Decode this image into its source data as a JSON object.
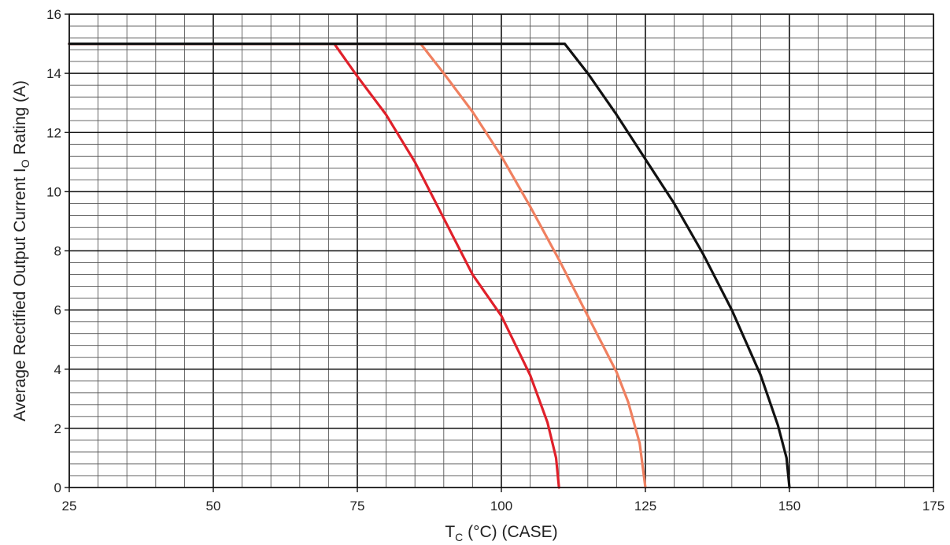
{
  "chart_data": {
    "type": "line",
    "xlabel": {
      "main": "T",
      "sub": "C",
      "rest": " (°C) (CASE)"
    },
    "ylabel": {
      "main": "Average Rectified Output Current I",
      "sub": "O",
      "rest": " Rating (A)"
    },
    "xlim": [
      25,
      175
    ],
    "ylim": [
      0,
      16
    ],
    "x_ticks": [
      "25",
      "50",
      "75",
      "100",
      "125",
      "150",
      "175"
    ],
    "y_ticks": [
      "0",
      "2",
      "4",
      "6",
      "8",
      "10",
      "12",
      "14",
      "16"
    ],
    "grid": true,
    "series": [
      {
        "color": "#e0202a",
        "points": [
          [
            25,
            15
          ],
          [
            71,
            15
          ],
          [
            75,
            13.9
          ],
          [
            80,
            12.6
          ],
          [
            85,
            11.0
          ],
          [
            90,
            9.1
          ],
          [
            95,
            7.2
          ],
          [
            100,
            5.8
          ],
          [
            105,
            3.8
          ],
          [
            108,
            2.2
          ],
          [
            109.5,
            1.0
          ],
          [
            110,
            0
          ]
        ]
      },
      {
        "color": "#f08060",
        "points": [
          [
            25,
            15
          ],
          [
            86,
            15
          ],
          [
            90,
            14.0
          ],
          [
            95,
            12.7
          ],
          [
            100,
            11.2
          ],
          [
            105,
            9.5
          ],
          [
            110,
            7.7
          ],
          [
            115,
            5.8
          ],
          [
            120,
            3.9
          ],
          [
            122,
            2.9
          ],
          [
            124,
            1.5
          ],
          [
            125,
            0
          ]
        ]
      },
      {
        "color": "#111111",
        "points": [
          [
            25,
            15
          ],
          [
            111,
            15
          ],
          [
            115,
            14.0
          ],
          [
            120,
            12.6
          ],
          [
            125,
            11.1
          ],
          [
            130,
            9.6
          ],
          [
            135,
            7.9
          ],
          [
            140,
            6.0
          ],
          [
            145,
            3.8
          ],
          [
            148,
            2.1
          ],
          [
            149.5,
            1.0
          ],
          [
            150,
            0
          ]
        ]
      }
    ]
  }
}
